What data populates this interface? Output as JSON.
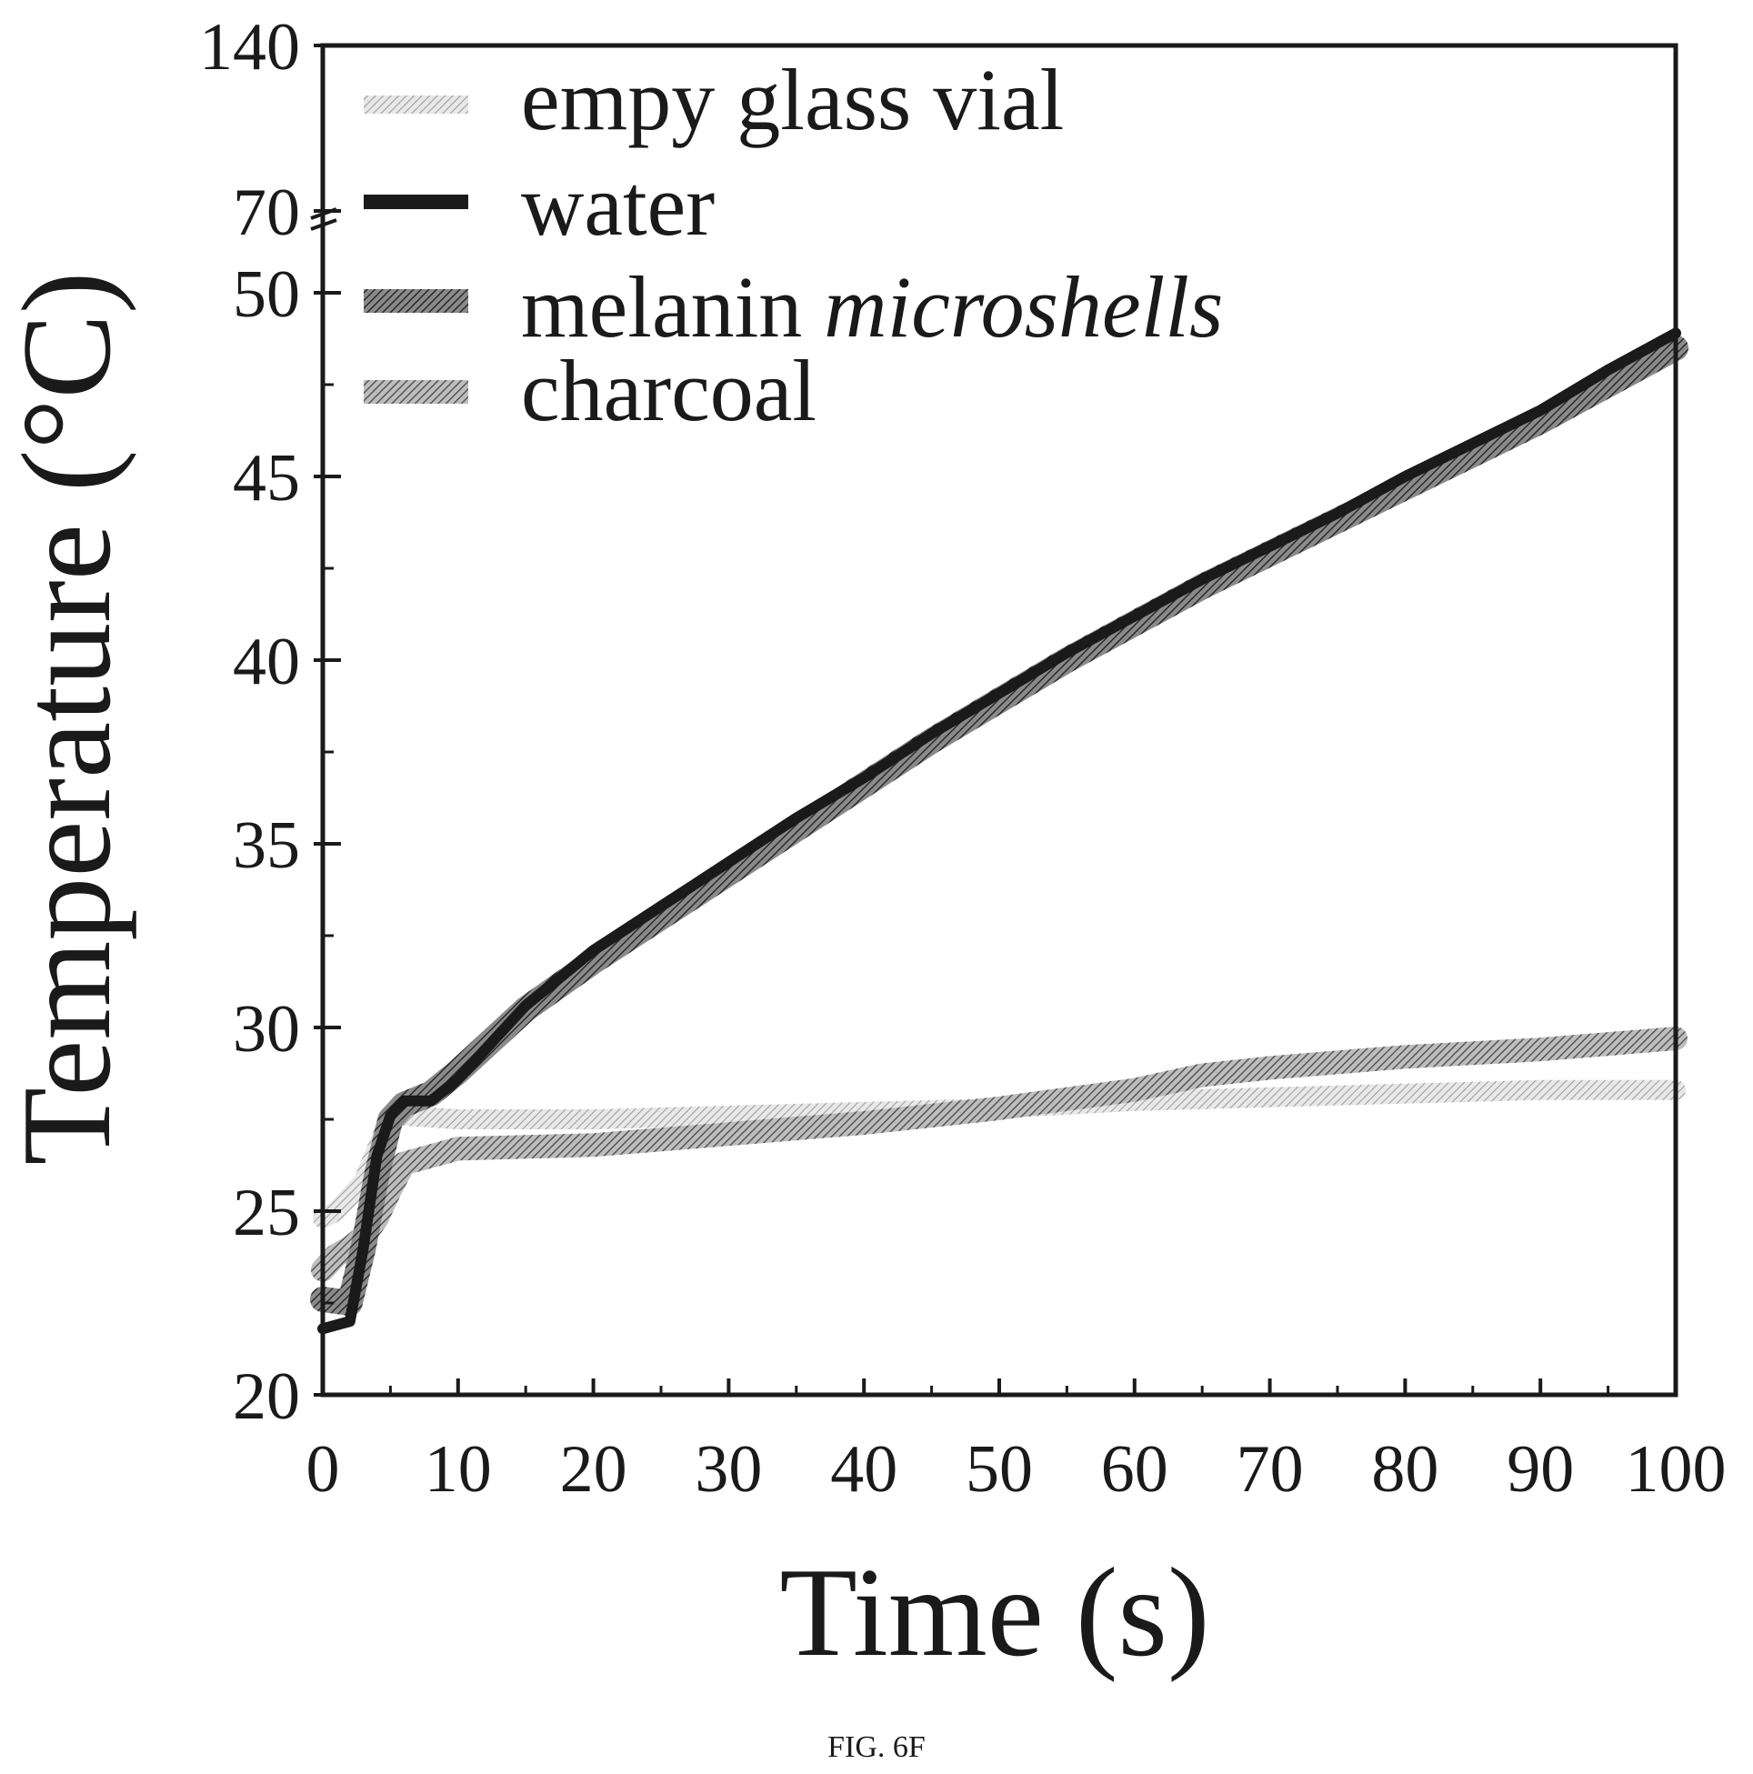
{
  "caption": "FIG. 6F",
  "chart_data": {
    "type": "line",
    "xlabel": "Time (s)",
    "ylabel": "Temperature (°C)",
    "xlim": [
      0,
      100
    ],
    "x_ticks": [
      "0",
      "10",
      "20",
      "30",
      "40",
      "50",
      "60",
      "70",
      "80",
      "90",
      "100"
    ],
    "y_ticks": [
      "20",
      "25",
      "30",
      "35",
      "40",
      "45",
      "50",
      "70",
      "140"
    ],
    "y_axis_break": true,
    "legend_position": "top-left",
    "grid": false,
    "series": [
      {
        "name": "empy glass vial",
        "color": "#bdbdbd",
        "x": [
          0,
          1,
          3,
          5,
          6,
          10,
          20,
          30,
          40,
          50,
          60,
          70,
          80,
          90,
          100
        ],
        "y": [
          24.8,
          25.0,
          25.8,
          27.6,
          27.6,
          27.5,
          27.5,
          27.6,
          27.7,
          27.8,
          28.0,
          28.1,
          28.2,
          28.3,
          28.3
        ]
      },
      {
        "name": "water",
        "color": "#1f1f1f",
        "x": [
          0,
          2,
          3,
          4,
          5,
          6,
          8,
          10,
          15,
          20,
          25,
          30,
          35,
          40,
          45,
          50,
          55,
          60,
          65,
          70,
          75,
          80,
          85,
          90,
          95,
          100
        ],
        "y": [
          21.8,
          22.0,
          24.0,
          26.5,
          27.6,
          28.0,
          28.0,
          28.6,
          30.6,
          32.1,
          33.3,
          34.5,
          35.7,
          36.8,
          38.0,
          39.1,
          40.2,
          41.2,
          42.2,
          43.1,
          44.0,
          45.0,
          45.9,
          46.8,
          47.9,
          48.9
        ]
      },
      {
        "name": "melanin microshells",
        "color": "#5a5a5a",
        "x": [
          0,
          2,
          3,
          4,
          5,
          6,
          8,
          10,
          15,
          20,
          25,
          30,
          35,
          40,
          45,
          50,
          55,
          60,
          65,
          70,
          75,
          80,
          85,
          90,
          95,
          100
        ],
        "y": [
          22.6,
          22.5,
          24.0,
          26.0,
          27.5,
          27.9,
          28.2,
          28.8,
          30.5,
          31.8,
          33.0,
          34.2,
          35.4,
          36.6,
          37.8,
          38.9,
          40.0,
          41.0,
          42.0,
          42.9,
          43.8,
          44.7,
          45.6,
          46.5,
          47.5,
          48.5
        ]
      },
      {
        "name": "charcoal",
        "color": "#8a8a8a",
        "x": [
          0,
          1,
          2,
          3,
          4,
          5,
          6,
          10,
          20,
          30,
          40,
          50,
          60,
          65,
          70,
          80,
          90,
          100
        ],
        "y": [
          23.4,
          23.8,
          24.0,
          24.3,
          24.8,
          25.6,
          26.3,
          26.7,
          26.8,
          27.1,
          27.4,
          27.8,
          28.3,
          28.7,
          28.9,
          29.2,
          29.4,
          29.7
        ]
      }
    ]
  }
}
